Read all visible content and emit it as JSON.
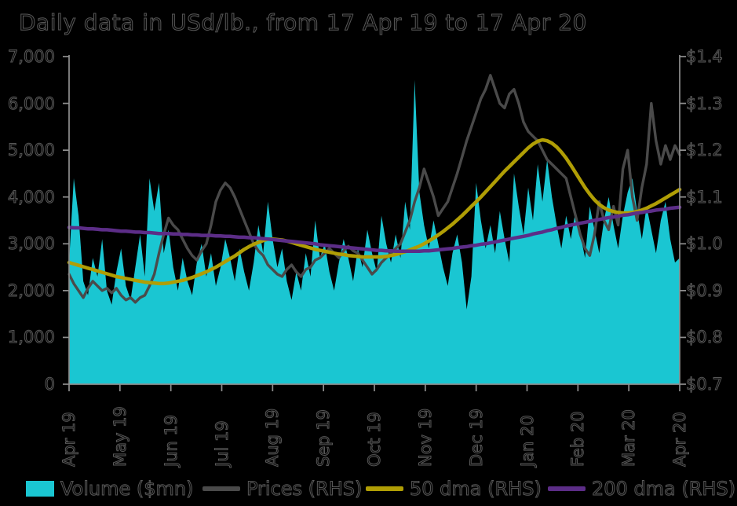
{
  "title": "Daily data in USd/lb., from 17 Apr 19 to 17 Apr 20",
  "colors": {
    "background": "#000000",
    "axis": "#8f8f8f",
    "volume": "#1ac6d2",
    "prices": "#4a4a4a",
    "dma50": "#b09e05",
    "dma200": "#5c2d87",
    "text_outline": "#585858"
  },
  "legend": {
    "position": "bottom",
    "items": [
      {
        "label": "Volume ($mn)",
        "swatch": "rect",
        "color": "#1ac6d2"
      },
      {
        "label": "Prices (RHS)",
        "swatch": "line",
        "color": "#4a4a4a"
      },
      {
        "label": "50 dma (RHS)",
        "swatch": "line",
        "color": "#b09e05"
      },
      {
        "label": "200 dma (RHS)",
        "swatch": "line",
        "color": "#5c2d87"
      }
    ]
  },
  "chart_data": {
    "type": "combo-area-line",
    "title": "Daily data in USd/lb., from 17 Apr 19 to 17 Apr 20",
    "grid": false,
    "x_axis": {
      "labels": [
        "Apr 19",
        "May 19",
        "Jun 19",
        "Jul 19",
        "Aug 19",
        "Sep 19",
        "Oct 19",
        "Nov 19",
        "Dec 19",
        "Jan 20",
        "Feb 20",
        "Mar 20",
        "Apr 20"
      ]
    },
    "left_axis": {
      "range": [
        0,
        7000
      ],
      "tick_labels": [
        "7,000",
        "6,000",
        "5,000",
        "4,000",
        "3,000",
        "2,000",
        "1,000",
        "0"
      ],
      "applies_to": "Volume ($mn)"
    },
    "right_axis": {
      "range": [
        0.7,
        1.4
      ],
      "tick_labels": [
        "$1.4",
        "$1.3",
        "$1.2",
        "$1.1",
        "$1.0",
        "$0.9",
        "$0.8",
        "$0.7"
      ],
      "applies_to": "Prices, 50 dma, 200 dma (USd/lb)"
    },
    "series": [
      {
        "name": "Volume ($mn)",
        "type": "area",
        "axis": "left",
        "color": "#1ac6d2",
        "values": [
          2600,
          4400,
          3600,
          2200,
          1900,
          2700,
          2300,
          3100,
          2000,
          1700,
          2400,
          2900,
          2100,
          1800,
          2500,
          3200,
          2300,
          4400,
          3700,
          4300,
          2800,
          3300,
          2500,
          2000,
          2700,
          2200,
          1900,
          2600,
          3000,
          2300,
          2800,
          2100,
          2500,
          3100,
          2700,
          2200,
          2900,
          2400,
          2000,
          2600,
          3400,
          2800,
          3900,
          3100,
          2500,
          2900,
          2200,
          1800,
          2400,
          2000,
          2800,
          2300,
          3500,
          2700,
          3000,
          2400,
          2000,
          2600,
          3100,
          2700,
          2200,
          2900,
          2500,
          3300,
          2800,
          2400,
          3600,
          3000,
          2600,
          3200,
          2700,
          3900,
          3300,
          6500,
          4100,
          3400,
          2900,
          3500,
          3000,
          2500,
          2100,
          2800,
          3200,
          2600,
          1600,
          2300,
          4300,
          3500,
          2900,
          3400,
          2800,
          3700,
          3100,
          2600,
          4500,
          3800,
          3200,
          4200,
          3500,
          4700,
          3900,
          4800,
          4000,
          3400,
          2900,
          3600,
          3100,
          3700,
          3200,
          2700,
          3800,
          3300,
          2800,
          3500,
          4000,
          3400,
          2900,
          3600,
          4100,
          4400,
          3700,
          3100,
          3800,
          3300,
          2800,
          3500,
          3900,
          3100,
          2600,
          2700
        ]
      },
      {
        "name": "Prices (RHS)",
        "type": "line",
        "axis": "right",
        "color": "#4a4a4a",
        "values": [
          0.935,
          0.915,
          0.9,
          0.885,
          0.905,
          0.92,
          0.91,
          0.9,
          0.905,
          0.895,
          0.905,
          0.89,
          0.88,
          0.885,
          0.875,
          0.885,
          0.89,
          0.91,
          0.935,
          0.98,
          1.02,
          1.055,
          1.04,
          1.03,
          1.01,
          0.99,
          0.975,
          0.965,
          0.985,
          1.0,
          1.04,
          1.09,
          1.115,
          1.13,
          1.12,
          1.1,
          1.075,
          1.05,
          1.025,
          1.0,
          0.985,
          0.975,
          0.955,
          0.945,
          0.935,
          0.93,
          0.945,
          0.955,
          0.94,
          0.93,
          0.945,
          0.95,
          0.965,
          0.97,
          0.98,
          0.99,
          0.98,
          0.97,
          0.985,
          0.995,
          0.985,
          0.98,
          0.965,
          0.95,
          0.935,
          0.945,
          0.96,
          0.97,
          0.98,
          0.99,
          1.0,
          1.025,
          1.05,
          1.09,
          1.12,
          1.16,
          1.13,
          1.1,
          1.06,
          1.075,
          1.09,
          1.12,
          1.15,
          1.185,
          1.22,
          1.25,
          1.28,
          1.31,
          1.33,
          1.36,
          1.33,
          1.3,
          1.29,
          1.32,
          1.33,
          1.3,
          1.26,
          1.24,
          1.23,
          1.22,
          1.2,
          1.18,
          1.17,
          1.16,
          1.15,
          1.14,
          1.1,
          1.06,
          1.02,
          0.99,
          0.975,
          1.02,
          1.09,
          1.05,
          1.03,
          1.08,
          1.04,
          1.16,
          1.2,
          1.1,
          1.05,
          1.12,
          1.17,
          1.3,
          1.22,
          1.17,
          1.21,
          1.18,
          1.21,
          1.19
        ]
      },
      {
        "name": "50 dma (RHS)",
        "type": "line",
        "axis": "right",
        "color": "#b09e05",
        "values": [
          0.96,
          0.957,
          0.954,
          0.951,
          0.948,
          0.945,
          0.942,
          0.939,
          0.936,
          0.933,
          0.93,
          0.928,
          0.926,
          0.924,
          0.922,
          0.92,
          0.918,
          0.917,
          0.916,
          0.915,
          0.915,
          0.916,
          0.918,
          0.92,
          0.922,
          0.925,
          0.928,
          0.932,
          0.936,
          0.94,
          0.945,
          0.95,
          0.956,
          0.962,
          0.968,
          0.974,
          0.981,
          0.988,
          0.994,
          0.999,
          1.003,
          1.007,
          1.01,
          1.01,
          1.009,
          1.008,
          1.006,
          1.003,
          1.0,
          0.997,
          0.994,
          0.991,
          0.988,
          0.986,
          0.984,
          0.982,
          0.98,
          0.978,
          0.977,
          0.975,
          0.974,
          0.973,
          0.972,
          0.972,
          0.972,
          0.972,
          0.972,
          0.973,
          0.975,
          0.977,
          0.98,
          0.983,
          0.987,
          0.991,
          0.995,
          1.0,
          1.006,
          1.012,
          1.019,
          1.026,
          1.034,
          1.042,
          1.051,
          1.06,
          1.07,
          1.08,
          1.09,
          1.1,
          1.111,
          1.122,
          1.133,
          1.144,
          1.155,
          1.165,
          1.175,
          1.185,
          1.195,
          1.205,
          1.213,
          1.219,
          1.222,
          1.22,
          1.215,
          1.207,
          1.196,
          1.183,
          1.168,
          1.152,
          1.136,
          1.12,
          1.106,
          1.094,
          1.084,
          1.077,
          1.072,
          1.069,
          1.067,
          1.066,
          1.066,
          1.067,
          1.069,
          1.072,
          1.076,
          1.081,
          1.086,
          1.092,
          1.098,
          1.104,
          1.11,
          1.116
        ]
      },
      {
        "name": "200 dma (RHS)",
        "type": "line",
        "axis": "right",
        "color": "#5c2d87",
        "values": [
          1.035,
          1.034,
          1.034,
          1.033,
          1.032,
          1.032,
          1.031,
          1.03,
          1.03,
          1.029,
          1.028,
          1.027,
          1.027,
          1.026,
          1.025,
          1.025,
          1.024,
          1.024,
          1.023,
          1.022,
          1.022,
          1.022,
          1.021,
          1.021,
          1.02,
          1.02,
          1.019,
          1.019,
          1.018,
          1.018,
          1.018,
          1.017,
          1.017,
          1.016,
          1.016,
          1.015,
          1.014,
          1.014,
          1.013,
          1.013,
          1.012,
          1.011,
          1.01,
          1.009,
          1.008,
          1.007,
          1.006,
          1.005,
          1.004,
          1.003,
          1.002,
          1.001,
          1.0,
          0.998,
          0.997,
          0.996,
          0.995,
          0.994,
          0.993,
          0.992,
          0.991,
          0.99,
          0.989,
          0.988,
          0.987,
          0.986,
          0.986,
          0.985,
          0.985,
          0.984,
          0.984,
          0.984,
          0.984,
          0.984,
          0.984,
          0.985,
          0.985,
          0.986,
          0.987,
          0.988,
          0.989,
          0.99,
          0.992,
          0.993,
          0.994,
          0.996,
          0.997,
          0.999,
          1.0,
          1.002,
          1.004,
          1.006,
          1.008,
          1.01,
          1.012,
          1.014,
          1.016,
          1.018,
          1.021,
          1.023,
          1.025,
          1.028,
          1.03,
          1.033,
          1.035,
          1.038,
          1.04,
          1.042,
          1.044,
          1.046,
          1.048,
          1.05,
          1.052,
          1.054,
          1.056,
          1.057,
          1.059,
          1.061,
          1.062,
          1.064,
          1.066,
          1.067,
          1.069,
          1.07,
          1.072,
          1.073,
          1.074,
          1.076,
          1.077,
          1.078
        ]
      }
    ]
  }
}
